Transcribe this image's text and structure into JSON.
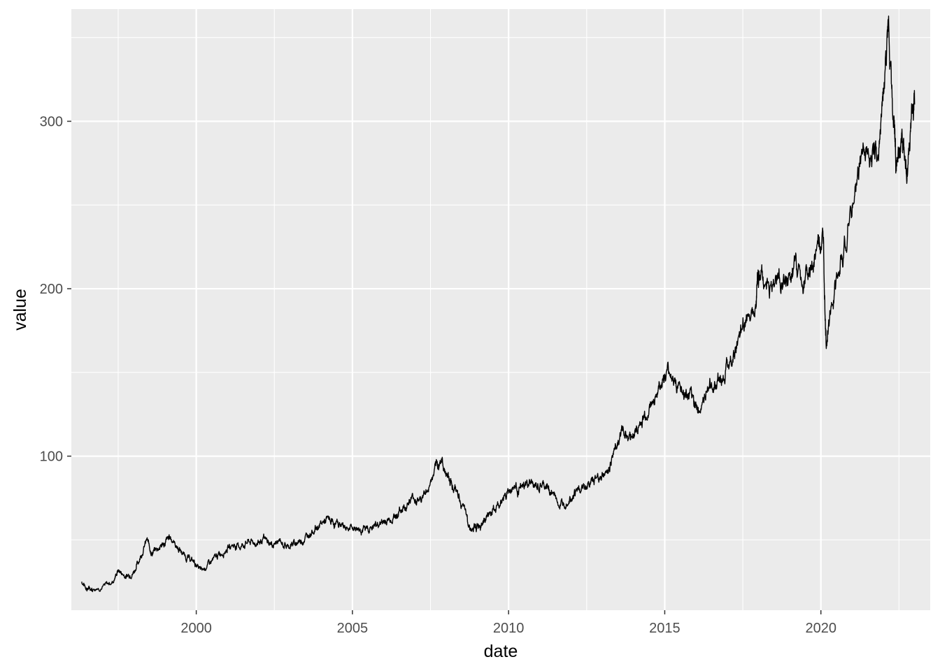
{
  "chart_data": {
    "type": "line",
    "xlabel": "date",
    "ylabel": "value",
    "x_ticks": [
      "2000",
      "2005",
      "2010",
      "2015",
      "2020"
    ],
    "y_ticks": [
      "100",
      "200",
      "300"
    ],
    "x_range": [
      "1996-01-01",
      "2023-07-01"
    ],
    "y_range": [
      8,
      367
    ],
    "grid": true,
    "legend": "none",
    "colors": {
      "panel": "#ebebeb",
      "grid": "#ffffff",
      "line": "#000000"
    },
    "series": [
      {
        "x": [
          "1996-05",
          "1996-07",
          "1996-09",
          "1997-01",
          "1997-05",
          "1997-07",
          "1997-10",
          "1998-01",
          "1998-03",
          "1998-06",
          "1998-08",
          "1998-10",
          "1999-01",
          "1999-03",
          "1999-06",
          "1999-09",
          "1999-12",
          "2000-03",
          "2000-06",
          "2000-09",
          "2000-12",
          "2001-03",
          "2001-06",
          "2001-09",
          "2001-12",
          "2002-03",
          "2002-06",
          "2002-09",
          "2002-12",
          "2003-03",
          "2003-06",
          "2003-09",
          "2003-12",
          "2004-03",
          "2004-06",
          "2004-09",
          "2004-12",
          "2005-03",
          "2005-06",
          "2005-09",
          "2005-12",
          "2006-03",
          "2006-06",
          "2006-09",
          "2006-12",
          "2007-03",
          "2007-06",
          "2007-09",
          "2007-11",
          "2008-01",
          "2008-03",
          "2008-06",
          "2008-09",
          "2008-11",
          "2009-01",
          "2009-03",
          "2009-06",
          "2009-09",
          "2009-12",
          "2010-03",
          "2010-06",
          "2010-09",
          "2010-12",
          "2011-03",
          "2011-06",
          "2011-09",
          "2011-12",
          "2012-03",
          "2012-06",
          "2012-09",
          "2012-12",
          "2013-03",
          "2013-06",
          "2013-09",
          "2013-12",
          "2014-03",
          "2014-06",
          "2014-09",
          "2014-12",
          "2015-03",
          "2015-06",
          "2015-09",
          "2015-12",
          "2016-02",
          "2016-06",
          "2016-09",
          "2016-12",
          "2017-03",
          "2017-06",
          "2017-09",
          "2017-12",
          "2018-01",
          "2018-03",
          "2018-06",
          "2018-09",
          "2018-12",
          "2019-03",
          "2019-06",
          "2019-09",
          "2019-12",
          "2020-02",
          "2020-03",
          "2020-05",
          "2020-08",
          "2020-11",
          "2021-02",
          "2021-05",
          "2021-08",
          "2021-11",
          "2022-01",
          "2022-03",
          "2022-05",
          "2022-06",
          "2022-08",
          "2022-10",
          "2022-12",
          "2023-01"
        ],
        "y": [
          25,
          21,
          21,
          22,
          25,
          32,
          28,
          31,
          38,
          50,
          42,
          45,
          48,
          52,
          45,
          40,
          37,
          31,
          36,
          40,
          44,
          47,
          46,
          49,
          48,
          50,
          47,
          49,
          46,
          48,
          50,
          55,
          58,
          62,
          60,
          59,
          57,
          57,
          56,
          58,
          60,
          62,
          65,
          70,
          75,
          74,
          80,
          92,
          98,
          90,
          85,
          75,
          63,
          55,
          58,
          62,
          66,
          70,
          78,
          82,
          80,
          84,
          81,
          82,
          78,
          70,
          76,
          79,
          81,
          85,
          88,
          90,
          106,
          115,
          112,
          117,
          125,
          135,
          145,
          150,
          142,
          135,
          133,
          128,
          140,
          145,
          150,
          160,
          170,
          185,
          195,
          210,
          205,
          200,
          208,
          200,
          215,
          205,
          210,
          225,
          225,
          170,
          185,
          210,
          232,
          255,
          285,
          278,
          282,
          320,
          355,
          300,
          275,
          290,
          270,
          300,
          310
        ]
      }
    ]
  }
}
